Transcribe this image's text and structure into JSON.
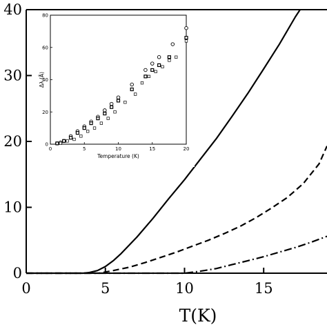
{
  "chart_data": [
    {
      "type": "line",
      "xlabel": "T(K)",
      "ylabel": "",
      "xlim": [
        0,
        19
      ],
      "ylim": [
        0,
        40
      ],
      "xticks": [
        0,
        5,
        10,
        15
      ],
      "yticks": [
        0,
        10,
        20,
        30,
        40
      ],
      "series": [
        {
          "style": "solid",
          "x": [
            0,
            3.6,
            4.0,
            4.5,
            5.0,
            5.5,
            6.0,
            7.0,
            8.0,
            9.0,
            10.0,
            11.0,
            12.0,
            13.0,
            14.0,
            15.0,
            16.0,
            17.0,
            17.3
          ],
          "y": [
            0,
            0,
            0.1,
            0.4,
            1.0,
            1.9,
            3.0,
            5.5,
            8.3,
            11.3,
            14.2,
            17.3,
            20.4,
            23.8,
            27.3,
            31.0,
            34.8,
            38.9,
            40.0
          ]
        },
        {
          "style": "dashed",
          "x": [
            0,
            4.6,
            5.5,
            6.5,
            7.5,
            8.5,
            9.5,
            10.5,
            11.5,
            12.5,
            13.5,
            14.5,
            15.5,
            16.5,
            17.5,
            18.5,
            19.0
          ],
          "y": [
            0,
            0,
            0.4,
            0.9,
            1.6,
            2.4,
            3.2,
            4.1,
            5.0,
            6.0,
            7.1,
            8.4,
            9.9,
            11.5,
            13.6,
            16.6,
            19.3
          ]
        },
        {
          "style": "dashdot",
          "x": [
            0,
            10.0,
            11.0,
            12.0,
            13.0,
            14.0,
            15.0,
            16.0,
            17.0,
            18.0,
            19.0
          ],
          "y": [
            0,
            0,
            0.3,
            0.7,
            1.3,
            1.9,
            2.5,
            3.2,
            3.9,
            4.7,
            5.6
          ]
        }
      ]
    },
    {
      "type": "scatter",
      "xlabel": "Temperature (K)",
      "ylabel": "Δλ (Å)",
      "xlim": [
        0,
        20
      ],
      "ylim": [
        0,
        80
      ],
      "xticks": [
        0,
        5,
        10,
        15,
        20
      ],
      "yticks": [
        0,
        20,
        40,
        60,
        80
      ],
      "series": [
        {
          "marker": "circle",
          "x": [
            1,
            1.5,
            2,
            3,
            4,
            5,
            6,
            7,
            8,
            9,
            10,
            12,
            14,
            15,
            16,
            18,
            20
          ],
          "y": [
            0.5,
            1,
            2,
            5,
            8,
            11,
            14,
            17,
            21,
            25,
            29,
            37,
            46,
            50,
            54,
            62,
            72
          ]
        },
        {
          "marker": "square",
          "x": [
            1,
            2,
            3,
            4,
            5,
            6,
            7,
            8,
            9,
            10,
            12,
            14,
            15,
            16,
            17.5,
            20
          ],
          "y": [
            0.5,
            2,
            4,
            7,
            10,
            13,
            16,
            19,
            23,
            27,
            34,
            42,
            46,
            49,
            54,
            66
          ]
        },
        {
          "marker": "open-square",
          "x": [
            1.5,
            2.5,
            3.5,
            4.5,
            5.5,
            6.5,
            7.5,
            8.5,
            9.5,
            11,
            12.5,
            13.5,
            14.5,
            15.5,
            16.5,
            17.5,
            18.5,
            20
          ],
          "y": [
            0.5,
            2,
            3,
            5,
            8,
            10,
            13,
            16,
            20,
            26,
            31,
            38,
            42,
            45,
            48,
            52,
            54,
            64
          ]
        }
      ]
    }
  ]
}
